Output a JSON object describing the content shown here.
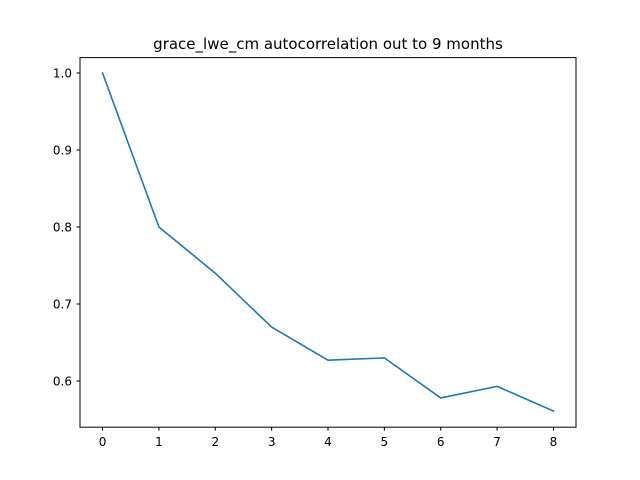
{
  "chart_data": {
    "type": "line",
    "title": "grace_lwe_cm autocorrelation out to 9 months",
    "xlabel": "",
    "ylabel": "",
    "x": [
      0,
      1,
      2,
      3,
      4,
      5,
      6,
      7,
      8
    ],
    "series": [
      {
        "values": [
          1.0,
          0.8,
          0.74,
          0.67,
          0.627,
          0.63,
          0.578,
          0.593,
          0.561
        ],
        "color": "#1f77b4"
      }
    ],
    "xlim": [
      -0.4,
      8.4
    ],
    "ylim": [
      0.54,
      1.02
    ],
    "x_ticks": [
      0,
      1,
      2,
      3,
      4,
      5,
      6,
      7,
      8
    ],
    "x_tick_labels": [
      "0",
      "1",
      "2",
      "3",
      "4",
      "5",
      "6",
      "7",
      "8"
    ],
    "y_ticks": [
      0.6,
      0.7,
      0.8,
      0.9,
      1.0
    ],
    "y_tick_labels": [
      "0.6",
      "0.7",
      "0.8",
      "0.9",
      "1.0"
    ],
    "grid": false,
    "legend": "none"
  }
}
